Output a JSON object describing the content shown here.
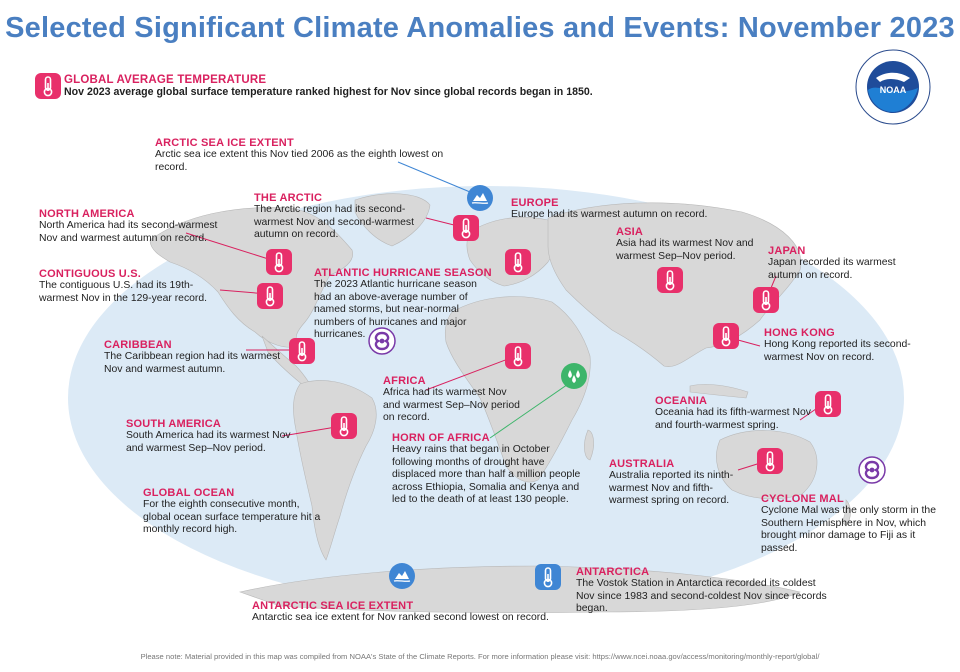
{
  "title": "Selected Significant Climate Anomalies and Events: November 2023",
  "logo": {
    "text": "NOAA",
    "ring_text": "NATIONAL OCEANIC AND ATMOSPHERIC ADMINISTRATION · U.S. DEPARTMENT OF COMMERCE",
    "icon": "noaa-logo"
  },
  "colors": {
    "title": "#4a7fc1",
    "heading": "#d9215f",
    "temperature_icon": "#e8306b",
    "drought_icon": "#3db56a",
    "ice_icon": "#3f86d4",
    "storm_icon": "#7a3aa8",
    "ocean": "#dceaf6",
    "land": "#d8d8d8"
  },
  "global_average": {
    "heading": "GLOBAL AVERAGE TEMPERATURE",
    "text": "Nov 2023 average global surface temperature ranked highest for Nov since global records began in 1850.",
    "icon": "thermometer-icon"
  },
  "labels": [
    {
      "id": "arctic-sea-ice",
      "heading": "ARCTIC SEA ICE EXTENT",
      "text": "Arctic sea ice extent this Nov tied 2006 as the eighth lowest on record.",
      "icon": "sea-ice-icon"
    },
    {
      "id": "the-arctic",
      "heading": "THE ARCTIC",
      "text": "The Arctic region had its second-warmest Nov and second-warmest autumn on record.",
      "icon": "thermometer-icon"
    },
    {
      "id": "north-america",
      "heading": "NORTH AMERICA",
      "text": "North America had its second-warmest Nov and warmest autumn on record.",
      "icon": "thermometer-icon"
    },
    {
      "id": "contiguous-us",
      "heading": "CONTIGUOUS U.S.",
      "text": "The contiguous U.S. had its 19th-warmest Nov in the 129-year record.",
      "icon": "thermometer-icon"
    },
    {
      "id": "atlantic-hurricane",
      "heading": "ATLANTIC HURRICANE SEASON",
      "text": "The 2023 Atlantic hurricane season had an above-average number of named storms, but near-normal numbers of hurricanes and major hurricanes.",
      "icon": "hurricane-icon"
    },
    {
      "id": "caribbean",
      "heading": "CARIBBEAN",
      "text": "The Caribbean region had its warmest Nov and warmest autumn.",
      "icon": "thermometer-icon"
    },
    {
      "id": "south-america",
      "heading": "SOUTH AMERICA",
      "text": "South America had its warmest Nov and warmest Sep–Nov period.",
      "icon": "thermometer-icon"
    },
    {
      "id": "global-ocean",
      "heading": "GLOBAL OCEAN",
      "text": "For the eighth consecutive month, global ocean surface temperature hit a monthly record high.",
      "icon": ""
    },
    {
      "id": "europe",
      "heading": "EUROPE",
      "text": "Europe had its warmest autumn on record.",
      "icon": "thermometer-icon"
    },
    {
      "id": "asia",
      "heading": "ASIA",
      "text": "Asia had its warmest Nov and warmest Sep–Nov period.",
      "icon": "thermometer-icon"
    },
    {
      "id": "japan",
      "heading": "JAPAN",
      "text": "Japan recorded its warmest autumn on record.",
      "icon": "thermometer-icon"
    },
    {
      "id": "hong-kong",
      "heading": "HONG KONG",
      "text": "Hong Kong reported its second-warmest Nov on record.",
      "icon": "thermometer-icon"
    },
    {
      "id": "africa",
      "heading": "AFRICA",
      "text": "Africa had its warmest Nov and warmest Sep–Nov period on record.",
      "icon": "thermometer-icon"
    },
    {
      "id": "horn-of-africa",
      "heading": "HORN OF AFRICA",
      "text": "Heavy rains that began in October following months of drought have displaced more than half a million people across Ethiopia, Somalia and Kenya and led to the death of at least 130 people.",
      "icon": "rain-drops-icon"
    },
    {
      "id": "oceania",
      "heading": "OCEANIA",
      "text": "Oceania had its fifth-warmest Nov and fourth-warmest spring.",
      "icon": "thermometer-icon"
    },
    {
      "id": "australia",
      "heading": "AUSTRALIA",
      "text": "Australia reported its ninth-warmest Nov and fifth-warmest spring on record.",
      "icon": "thermometer-icon"
    },
    {
      "id": "cyclone-mal",
      "heading": "CYCLONE MAL",
      "text": "Cyclone Mal was the only storm in the Southern Hemisphere in Nov, which brought minor damage to Fiji as it passed.",
      "icon": "cyclone-icon"
    },
    {
      "id": "antarctica",
      "heading": "ANTARCTICA",
      "text": "The Vostok Station in Antarctica recorded its coldest Nov since 1983 and second-coldest Nov since records began.",
      "icon": "cold-thermometer-icon"
    },
    {
      "id": "antarctic-sea-ice",
      "heading": "ANTARCTIC SEA ICE EXTENT",
      "text": "Antarctic sea ice extent for Nov ranked second lowest on record.",
      "icon": "sea-ice-icon"
    }
  ],
  "footer": "Please note: Material provided in this map was compiled from NOAA's State of the Climate Reports. For more information please visit: https://www.ncei.noaa.gov/access/monitoring/monthly-report/global/"
}
